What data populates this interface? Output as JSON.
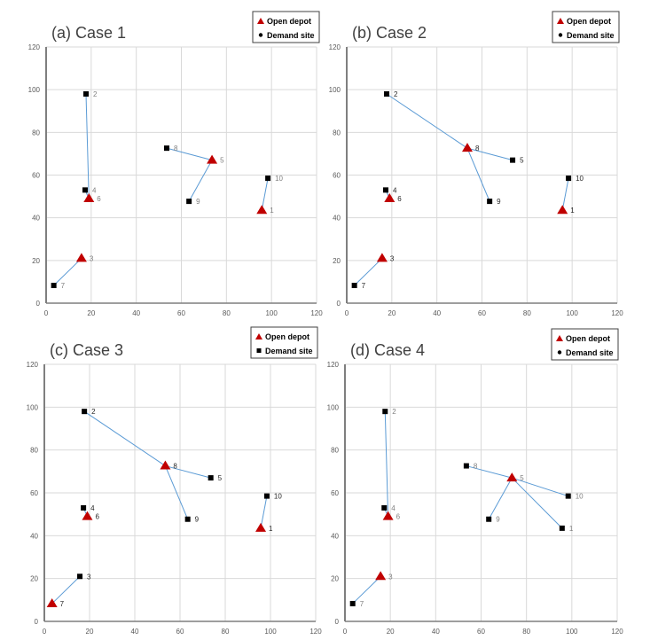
{
  "figure": {
    "legend": {
      "depot_label": "Open depot",
      "demand_label": "Demand site"
    },
    "colors": {
      "depot": "#c00000",
      "demand": "#000000",
      "link": "#5b9bd5",
      "grid": "#d9d9d9",
      "axis": "#7f7f7f",
      "label_gray": "#7f7f7f",
      "label_dark": "#262626"
    }
  },
  "chart_data": [
    {
      "type": "scatter",
      "title": "(a) Case 1",
      "xlabel": "",
      "ylabel": "",
      "xlim": [
        0,
        120
      ],
      "ylim": [
        0,
        120
      ],
      "xticks": [
        0,
        20,
        40,
        60,
        80,
        100,
        120
      ],
      "yticks": [
        0,
        20,
        40,
        60,
        80,
        100,
        120
      ],
      "grid": true,
      "legend_position": "top-right",
      "legend_demand_marker": "circle",
      "label_tone": "gray",
      "points": [
        {
          "id": "1",
          "x": 95.7,
          "y": 43.5,
          "type": "depot"
        },
        {
          "id": "2",
          "x": 17.7,
          "y": 98.0,
          "type": "demand"
        },
        {
          "id": "3",
          "x": 15.7,
          "y": 21.0,
          "type": "depot"
        },
        {
          "id": "4",
          "x": 17.3,
          "y": 53.0,
          "type": "demand"
        },
        {
          "id": "5",
          "x": 73.6,
          "y": 67.0,
          "type": "depot"
        },
        {
          "id": "6",
          "x": 19.0,
          "y": 49.0,
          "type": "depot"
        },
        {
          "id": "7",
          "x": 3.4,
          "y": 8.3,
          "type": "demand"
        },
        {
          "id": "8",
          "x": 53.5,
          "y": 72.6,
          "type": "demand"
        },
        {
          "id": "9",
          "x": 63.4,
          "y": 47.7,
          "type": "demand"
        },
        {
          "id": "10",
          "x": 98.4,
          "y": 58.5,
          "type": "demand"
        }
      ],
      "links": [
        [
          "2",
          "6"
        ],
        [
          "4",
          "6"
        ],
        [
          "8",
          "5"
        ],
        [
          "9",
          "5"
        ],
        [
          "10",
          "1"
        ],
        [
          "7",
          "3"
        ]
      ]
    },
    {
      "type": "scatter",
      "title": "(b) Case 2",
      "xlabel": "",
      "ylabel": "",
      "xlim": [
        0,
        120
      ],
      "ylim": [
        0,
        120
      ],
      "xticks": [
        0,
        20,
        40,
        60,
        80,
        100,
        120
      ],
      "yticks": [
        0,
        20,
        40,
        60,
        80,
        100,
        120
      ],
      "grid": true,
      "legend_position": "top-right",
      "legend_demand_marker": "circle",
      "label_tone": "dark",
      "points": [
        {
          "id": "1",
          "x": 95.7,
          "y": 43.5,
          "type": "depot"
        },
        {
          "id": "2",
          "x": 17.7,
          "y": 98.0,
          "type": "demand"
        },
        {
          "id": "3",
          "x": 15.7,
          "y": 21.0,
          "type": "depot"
        },
        {
          "id": "4",
          "x": 17.3,
          "y": 53.0,
          "type": "demand"
        },
        {
          "id": "5",
          "x": 73.6,
          "y": 67.0,
          "type": "demand"
        },
        {
          "id": "6",
          "x": 19.0,
          "y": 49.0,
          "type": "depot"
        },
        {
          "id": "7",
          "x": 3.4,
          "y": 8.3,
          "type": "demand"
        },
        {
          "id": "8",
          "x": 53.5,
          "y": 72.6,
          "type": "depot"
        },
        {
          "id": "9",
          "x": 63.4,
          "y": 47.7,
          "type": "demand"
        },
        {
          "id": "10",
          "x": 98.4,
          "y": 58.5,
          "type": "demand"
        }
      ],
      "links": [
        [
          "2",
          "8"
        ],
        [
          "5",
          "8"
        ],
        [
          "9",
          "8"
        ],
        [
          "4",
          "6"
        ],
        [
          "10",
          "1"
        ],
        [
          "7",
          "3"
        ]
      ]
    },
    {
      "type": "scatter",
      "title": "(c) Case 3",
      "xlabel": "",
      "ylabel": "",
      "xlim": [
        0,
        120
      ],
      "ylim": [
        0,
        120
      ],
      "xticks": [
        0,
        20,
        40,
        60,
        80,
        100,
        120
      ],
      "yticks": [
        0,
        20,
        40,
        60,
        80,
        100,
        120
      ],
      "grid": true,
      "legend_position": "top-right",
      "legend_demand_marker": "square",
      "label_tone": "dark",
      "points": [
        {
          "id": "1",
          "x": 95.7,
          "y": 43.5,
          "type": "depot"
        },
        {
          "id": "2",
          "x": 17.7,
          "y": 98.0,
          "type": "demand"
        },
        {
          "id": "3",
          "x": 15.7,
          "y": 21.0,
          "type": "demand"
        },
        {
          "id": "4",
          "x": 17.3,
          "y": 53.0,
          "type": "demand"
        },
        {
          "id": "5",
          "x": 73.6,
          "y": 67.0,
          "type": "demand"
        },
        {
          "id": "6",
          "x": 19.0,
          "y": 49.0,
          "type": "depot"
        },
        {
          "id": "7",
          "x": 3.4,
          "y": 8.3,
          "type": "depot"
        },
        {
          "id": "8",
          "x": 53.5,
          "y": 72.6,
          "type": "depot"
        },
        {
          "id": "9",
          "x": 63.4,
          "y": 47.7,
          "type": "demand"
        },
        {
          "id": "10",
          "x": 98.4,
          "y": 58.5,
          "type": "demand"
        }
      ],
      "links": [
        [
          "2",
          "8"
        ],
        [
          "5",
          "8"
        ],
        [
          "9",
          "8"
        ],
        [
          "4",
          "6"
        ],
        [
          "10",
          "1"
        ],
        [
          "3",
          "7"
        ]
      ]
    },
    {
      "type": "scatter",
      "title": "(d) Case 4",
      "xlabel": "",
      "ylabel": "",
      "xlim": [
        0,
        120
      ],
      "ylim": [
        0,
        120
      ],
      "xticks": [
        0,
        20,
        40,
        60,
        80,
        100,
        120
      ],
      "yticks": [
        0,
        20,
        40,
        60,
        80,
        100,
        120
      ],
      "grid": true,
      "legend_position": "top-right",
      "legend_demand_marker": "circle",
      "label_tone": "gray",
      "points": [
        {
          "id": "1",
          "x": 95.7,
          "y": 43.5,
          "type": "demand"
        },
        {
          "id": "2",
          "x": 17.7,
          "y": 98.0,
          "type": "demand"
        },
        {
          "id": "3",
          "x": 15.7,
          "y": 21.0,
          "type": "depot"
        },
        {
          "id": "4",
          "x": 17.3,
          "y": 53.0,
          "type": "demand"
        },
        {
          "id": "5",
          "x": 73.6,
          "y": 67.0,
          "type": "depot"
        },
        {
          "id": "6",
          "x": 19.0,
          "y": 49.0,
          "type": "depot"
        },
        {
          "id": "7",
          "x": 3.4,
          "y": 8.3,
          "type": "demand"
        },
        {
          "id": "8",
          "x": 53.5,
          "y": 72.6,
          "type": "demand"
        },
        {
          "id": "9",
          "x": 63.4,
          "y": 47.7,
          "type": "demand"
        },
        {
          "id": "10",
          "x": 98.4,
          "y": 58.5,
          "type": "demand"
        }
      ],
      "links": [
        [
          "2",
          "6"
        ],
        [
          "4",
          "6"
        ],
        [
          "8",
          "5"
        ],
        [
          "9",
          "5"
        ],
        [
          "10",
          "5"
        ],
        [
          "1",
          "5"
        ],
        [
          "7",
          "3"
        ]
      ]
    }
  ]
}
